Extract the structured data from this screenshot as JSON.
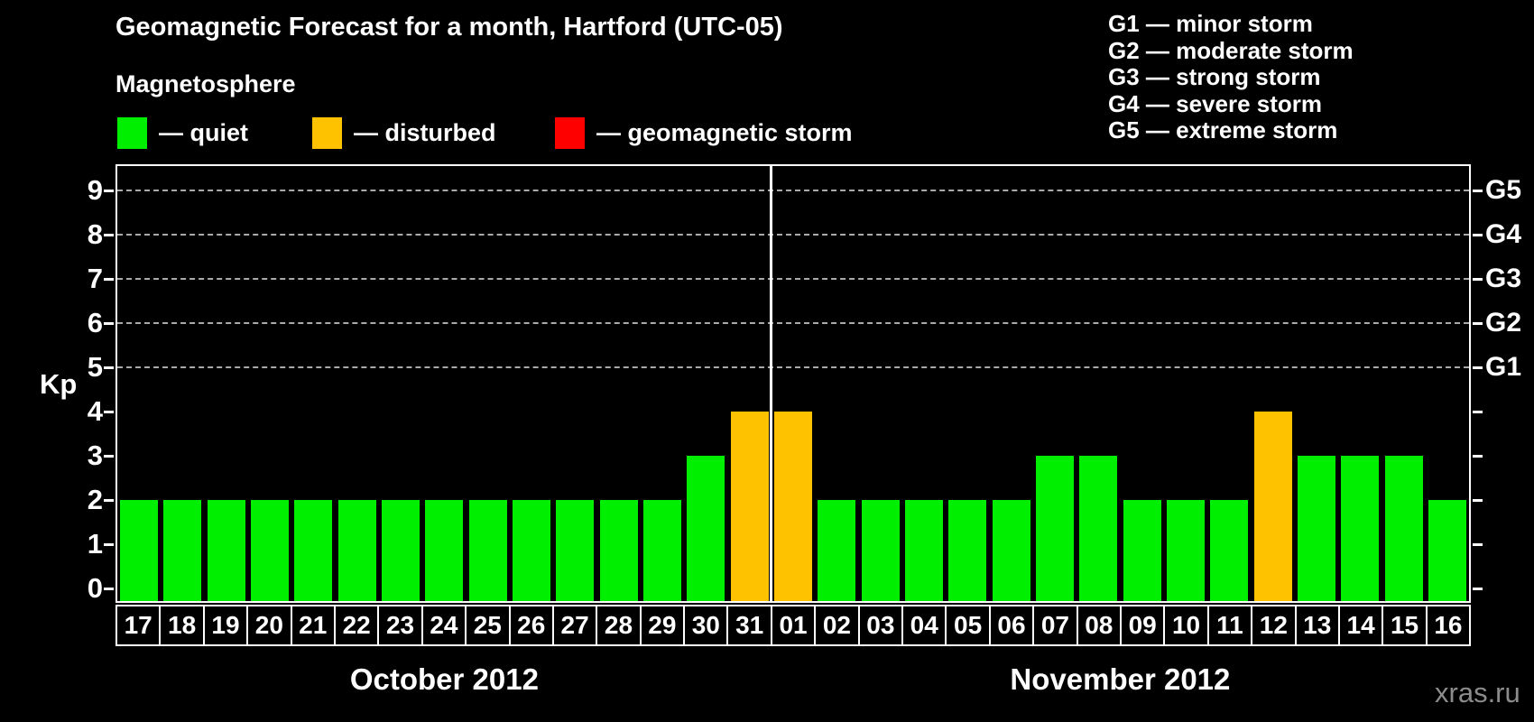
{
  "title": "Geomagnetic Forecast for a month, Hartford (UTC-05)",
  "legend": {
    "heading": "Magnetosphere",
    "items": [
      {
        "name": "quiet",
        "label": "— quiet",
        "color": "#00EE00"
      },
      {
        "name": "disturbed",
        "label": "— disturbed",
        "color": "#FFC200"
      },
      {
        "name": "storm",
        "label": "— geomagnetic storm",
        "color": "#FF0000"
      }
    ]
  },
  "storm_scale": [
    "G1 — minor storm",
    "G2 — moderate storm",
    "G3 — strong storm",
    "G4 — severe storm",
    "G5 — extreme storm"
  ],
  "watermark": "xras.ru",
  "chart_data": {
    "type": "bar",
    "title": "Geomagnetic Forecast for a month, Hartford (UTC-05)",
    "ylabel": "Kp",
    "ylim": [
      0,
      9.6
    ],
    "yticks": [
      0,
      1,
      2,
      3,
      4,
      5,
      6,
      7,
      8,
      9
    ],
    "grid_kp_levels": [
      5,
      6,
      7,
      8,
      9
    ],
    "right_axis": [
      {
        "kp": 5,
        "label": "G1"
      },
      {
        "kp": 6,
        "label": "G2"
      },
      {
        "kp": 7,
        "label": "G3"
      },
      {
        "kp": 8,
        "label": "G4"
      },
      {
        "kp": 9,
        "label": "G5"
      }
    ],
    "colors": {
      "quiet": "#00EE00",
      "disturbed": "#FFC200",
      "storm": "#FF0000"
    },
    "months": [
      {
        "label": "October 2012",
        "days": 15
      },
      {
        "label": "November 2012",
        "days": 16
      }
    ],
    "bars": [
      {
        "day": "17",
        "kp": 2,
        "status": "quiet"
      },
      {
        "day": "18",
        "kp": 2,
        "status": "quiet"
      },
      {
        "day": "19",
        "kp": 2,
        "status": "quiet"
      },
      {
        "day": "20",
        "kp": 2,
        "status": "quiet"
      },
      {
        "day": "21",
        "kp": 2,
        "status": "quiet"
      },
      {
        "day": "22",
        "kp": 2,
        "status": "quiet"
      },
      {
        "day": "23",
        "kp": 2,
        "status": "quiet"
      },
      {
        "day": "24",
        "kp": 2,
        "status": "quiet"
      },
      {
        "day": "25",
        "kp": 2,
        "status": "quiet"
      },
      {
        "day": "26",
        "kp": 2,
        "status": "quiet"
      },
      {
        "day": "27",
        "kp": 2,
        "status": "quiet"
      },
      {
        "day": "28",
        "kp": 2,
        "status": "quiet"
      },
      {
        "day": "29",
        "kp": 2,
        "status": "quiet"
      },
      {
        "day": "30",
        "kp": 3,
        "status": "quiet"
      },
      {
        "day": "31",
        "kp": 4,
        "status": "disturbed"
      },
      {
        "day": "01",
        "kp": 4,
        "status": "disturbed"
      },
      {
        "day": "02",
        "kp": 2,
        "status": "quiet"
      },
      {
        "day": "03",
        "kp": 2,
        "status": "quiet"
      },
      {
        "day": "04",
        "kp": 2,
        "status": "quiet"
      },
      {
        "day": "05",
        "kp": 2,
        "status": "quiet"
      },
      {
        "day": "06",
        "kp": 2,
        "status": "quiet"
      },
      {
        "day": "07",
        "kp": 3,
        "status": "quiet"
      },
      {
        "day": "08",
        "kp": 3,
        "status": "quiet"
      },
      {
        "day": "09",
        "kp": 2,
        "status": "quiet"
      },
      {
        "day": "10",
        "kp": 2,
        "status": "quiet"
      },
      {
        "day": "11",
        "kp": 2,
        "status": "quiet"
      },
      {
        "day": "12",
        "kp": 4,
        "status": "disturbed"
      },
      {
        "day": "13",
        "kp": 3,
        "status": "quiet"
      },
      {
        "day": "14",
        "kp": 3,
        "status": "quiet"
      },
      {
        "day": "15",
        "kp": 3,
        "status": "quiet"
      },
      {
        "day": "16",
        "kp": 2,
        "status": "quiet"
      }
    ]
  }
}
